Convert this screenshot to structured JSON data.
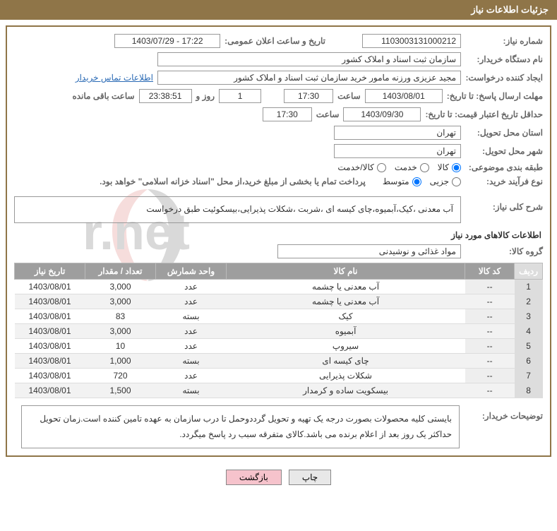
{
  "header": {
    "title": "جزئیات اطلاعات نیاز"
  },
  "fields": {
    "need_number_label": "شماره نیاز:",
    "need_number": "1103003131000212",
    "announce_datetime_label": "تاریخ و ساعت اعلان عمومی:",
    "announce_datetime": "1403/07/29 - 17:22",
    "buyer_org_label": "نام دستگاه خریدار:",
    "buyer_org": "سازمان ثبت اسناد و املاک کشور",
    "requester_label": "ایجاد کننده درخواست:",
    "requester": "مجید عزیزی ورزنه مامور خرید سازمان ثبت اسناد و املاک کشور",
    "contact_link": "اطلاعات تماس خریدار",
    "reply_deadline_label": "مهلت ارسال پاسخ: تا تاریخ:",
    "reply_deadline_date": "1403/08/01",
    "time_label": "ساعت",
    "reply_deadline_time": "17:30",
    "days_value": "1",
    "days_and_label": "روز و",
    "countdown": "23:38:51",
    "countdown_suffix": "ساعت باقی مانده",
    "validity_label": "حداقل تاریخ اعتبار قیمت: تا تاریخ:",
    "validity_date": "1403/09/30",
    "validity_time": "17:30",
    "delivery_province_label": "استان محل تحویل:",
    "delivery_province": "تهران",
    "delivery_city_label": "شهر محل تحویل:",
    "delivery_city": "تهران",
    "category_label": "طبقه بندی موضوعی:",
    "category_opts": {
      "goods": "کالا",
      "service": "خدمت",
      "both": "کالا/خدمت"
    },
    "category_selected": "goods",
    "process_type_label": "نوع فرآیند خرید:",
    "process_opts": {
      "minor": "جزیی",
      "medium": "متوسط"
    },
    "process_selected": "medium",
    "payment_note": "پرداخت تمام یا بخشی از مبلغ خرید،از محل \"اسناد خزانه اسلامی\" خواهد بود.",
    "need_desc_label": "شرح کلی نیاز:",
    "need_desc": "آب معدنی ،کیک،آبمیوه،چای کیسه ای ،شربت ،شکلات پذیرایی،بیسکوئیت طبق درخواست",
    "goods_info_title": "اطلاعات کالاهای مورد نیاز",
    "goods_group_label": "گروه کالا:",
    "goods_group": "مواد غذائی و نوشیدنی",
    "buyer_notes_label": "توضیحات خریدار:",
    "buyer_notes": "بایستی کلیه محصولات بصورت درجه یک تهیه و تحویل گرددوحمل تا درب سازمان به عهده تامین کننده است.زمان تحویل حداکثر یک روز بعد از اعلام برنده می باشد.کالای متفرقه سبب رد پاسخ میگردد."
  },
  "table": {
    "headers": {
      "row": "ردیف",
      "code": "کد کالا",
      "name": "نام کالا",
      "unit": "واحد شمارش",
      "qty": "تعداد / مقدار",
      "need_date": "تاریخ نیاز"
    },
    "rows": [
      {
        "n": "1",
        "code": "--",
        "name": "آب معدنی یا چشمه",
        "unit": "عدد",
        "qty": "3,000",
        "date": "1403/08/01"
      },
      {
        "n": "2",
        "code": "--",
        "name": "آب معدنی یا چشمه",
        "unit": "عدد",
        "qty": "3,000",
        "date": "1403/08/01"
      },
      {
        "n": "3",
        "code": "--",
        "name": "کیک",
        "unit": "بسته",
        "qty": "83",
        "date": "1403/08/01"
      },
      {
        "n": "4",
        "code": "--",
        "name": "آبمیوه",
        "unit": "عدد",
        "qty": "3,000",
        "date": "1403/08/01"
      },
      {
        "n": "5",
        "code": "--",
        "name": "سیروپ",
        "unit": "عدد",
        "qty": "10",
        "date": "1403/08/01"
      },
      {
        "n": "6",
        "code": "--",
        "name": "چای کیسه ای",
        "unit": "بسته",
        "qty": "1,000",
        "date": "1403/08/01"
      },
      {
        "n": "7",
        "code": "--",
        "name": "شکلات پذیرایی",
        "unit": "عدد",
        "qty": "720",
        "date": "1403/08/01"
      },
      {
        "n": "8",
        "code": "--",
        "name": "بیسکویت ساده و کرمدار",
        "unit": "بسته",
        "qty": "1,500",
        "date": "1403/08/01"
      }
    ]
  },
  "buttons": {
    "print": "چاپ",
    "back": "بازگشت"
  },
  "colors": {
    "header_bg": "#8f7548",
    "th_bg": "#9e9e9e",
    "link": "#2a6ab5",
    "btn_back_bg": "#f6c3cc"
  },
  "watermark": {
    "text": "Arlalender.net"
  }
}
